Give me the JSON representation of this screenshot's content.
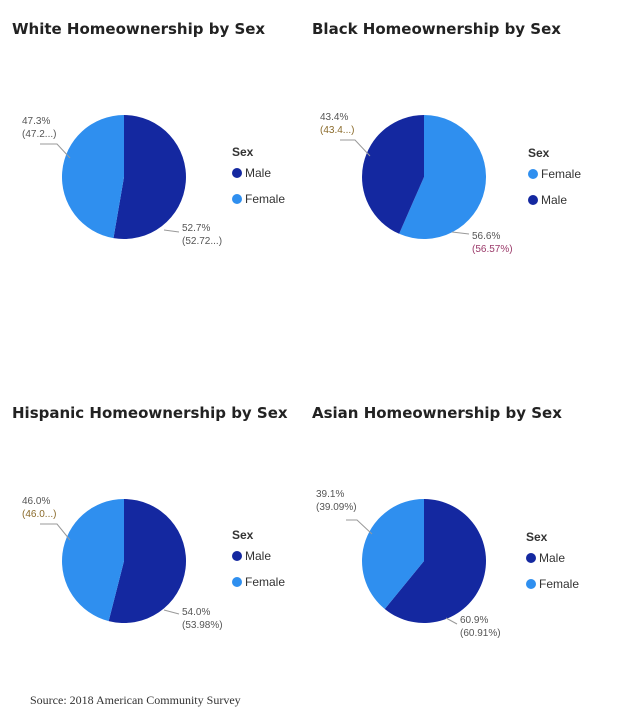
{
  "colors": {
    "male": "#1428A0",
    "female": "#2F8FEF",
    "label_accent": "#8a6a2a",
    "label_alt": "#9b3a6a"
  },
  "chart_data": [
    {
      "type": "pie",
      "title": "White Homeownership by Sex",
      "legend": {
        "title": "Sex",
        "placement": "right"
      },
      "slices": [
        {
          "name": "Male",
          "value": 52.72,
          "label": "52.7%",
          "detail": "(52.72...)"
        },
        {
          "name": "Female",
          "value": 47.28,
          "label": "47.3%",
          "detail": "(47.2...)"
        }
      ]
    },
    {
      "type": "pie",
      "title": "Black Homeownership by Sex",
      "legend": {
        "title": "Sex",
        "placement": "right"
      },
      "slices": [
        {
          "name": "Female",
          "value": 56.57,
          "label": "56.6%",
          "detail": "(56.57%)"
        },
        {
          "name": "Male",
          "value": 43.43,
          "label": "43.4%",
          "detail": "(43.4...)"
        }
      ]
    },
    {
      "type": "pie",
      "title": "Hispanic Homeownership by Sex",
      "legend": {
        "title": "Sex",
        "placement": "right"
      },
      "slices": [
        {
          "name": "Male",
          "value": 53.98,
          "label": "54.0%",
          "detail": "(53.98%)"
        },
        {
          "name": "Female",
          "value": 46.02,
          "label": "46.0%",
          "detail": "(46.0...)"
        }
      ]
    },
    {
      "type": "pie",
      "title": "Asian Homeownership by Sex",
      "legend": {
        "title": "Sex",
        "placement": "right"
      },
      "slices": [
        {
          "name": "Male",
          "value": 60.91,
          "label": "60.9%",
          "detail": "(60.91%)"
        },
        {
          "name": "Female",
          "value": 39.09,
          "label": "39.1%",
          "detail": "(39.09%)"
        }
      ]
    }
  ],
  "source": "Source: 2018 American Community Survey"
}
